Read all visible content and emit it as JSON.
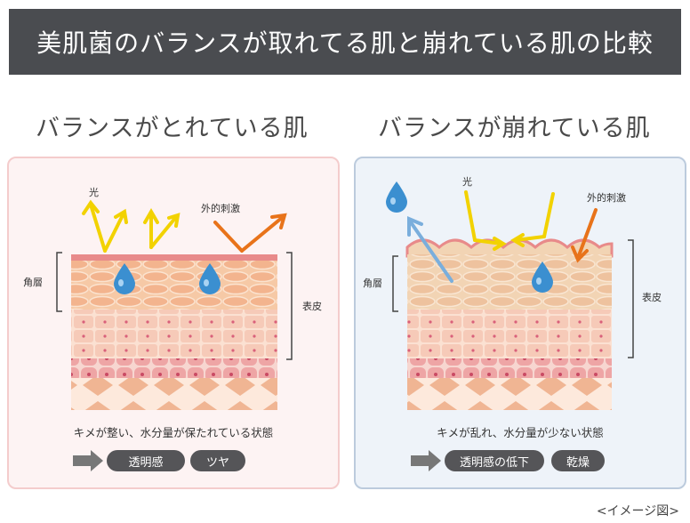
{
  "title": "美肌菌のバランスが取れてる肌と崩れている肌の比較",
  "left": {
    "heading": "バランスがとれている肌",
    "label_light": "光",
    "label_stimulus": "外的刺激",
    "label_stratum": "角層",
    "label_epidermis": "表皮",
    "caption": "キメが整い、水分量が保たれている状態",
    "results": [
      "透明感",
      "ツヤ"
    ]
  },
  "right": {
    "heading": "バランスが崩れている肌",
    "label_light": "光",
    "label_stimulus": "外的刺激",
    "label_stratum": "角層",
    "label_epidermis": "表皮",
    "caption": "キメが乱れ、水分量が少ない状態",
    "results": [
      "透明感の低下",
      "乾燥"
    ]
  },
  "note": "<イメージ図>",
  "colors": {
    "banner": "#4a4c50",
    "light_arrow": "#f2d200",
    "stimulus_arrow": "#e8731a",
    "water_drop": "#3b8fd0",
    "evaporation_arrow": "#7aaedc"
  }
}
